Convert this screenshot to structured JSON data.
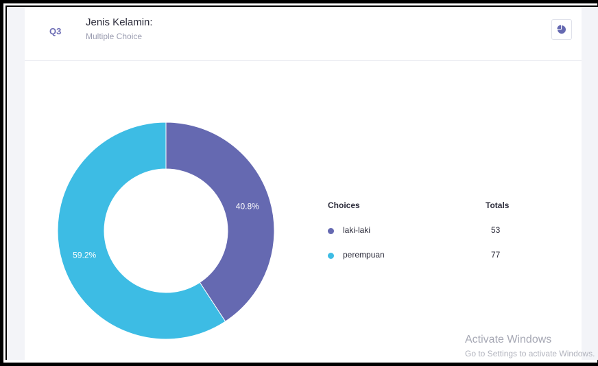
{
  "question": {
    "number": "Q3",
    "title": "Jenis Kelamin:",
    "type": "Multiple Choice"
  },
  "toolbar": {
    "chart_toggle_icon": "pie-chart-icon"
  },
  "legend": {
    "choices_header": "Choices",
    "totals_header": "Totals",
    "rows": [
      {
        "label": "laki-laki",
        "total": "53",
        "color": "#6569b1"
      },
      {
        "label": "perempuan",
        "total": "77",
        "color": "#3dbce4"
      }
    ]
  },
  "chart_data": {
    "type": "pie",
    "labels": [
      "laki-laki",
      "perempuan"
    ],
    "values": [
      53,
      77
    ],
    "percent_labels": [
      "40.8%",
      "59.2%"
    ],
    "colors": [
      "#6569b1",
      "#3dbce4"
    ],
    "donut": true
  },
  "watermark": {
    "title": "Activate Windows",
    "subtitle": "Go to Settings to activate Windows."
  }
}
